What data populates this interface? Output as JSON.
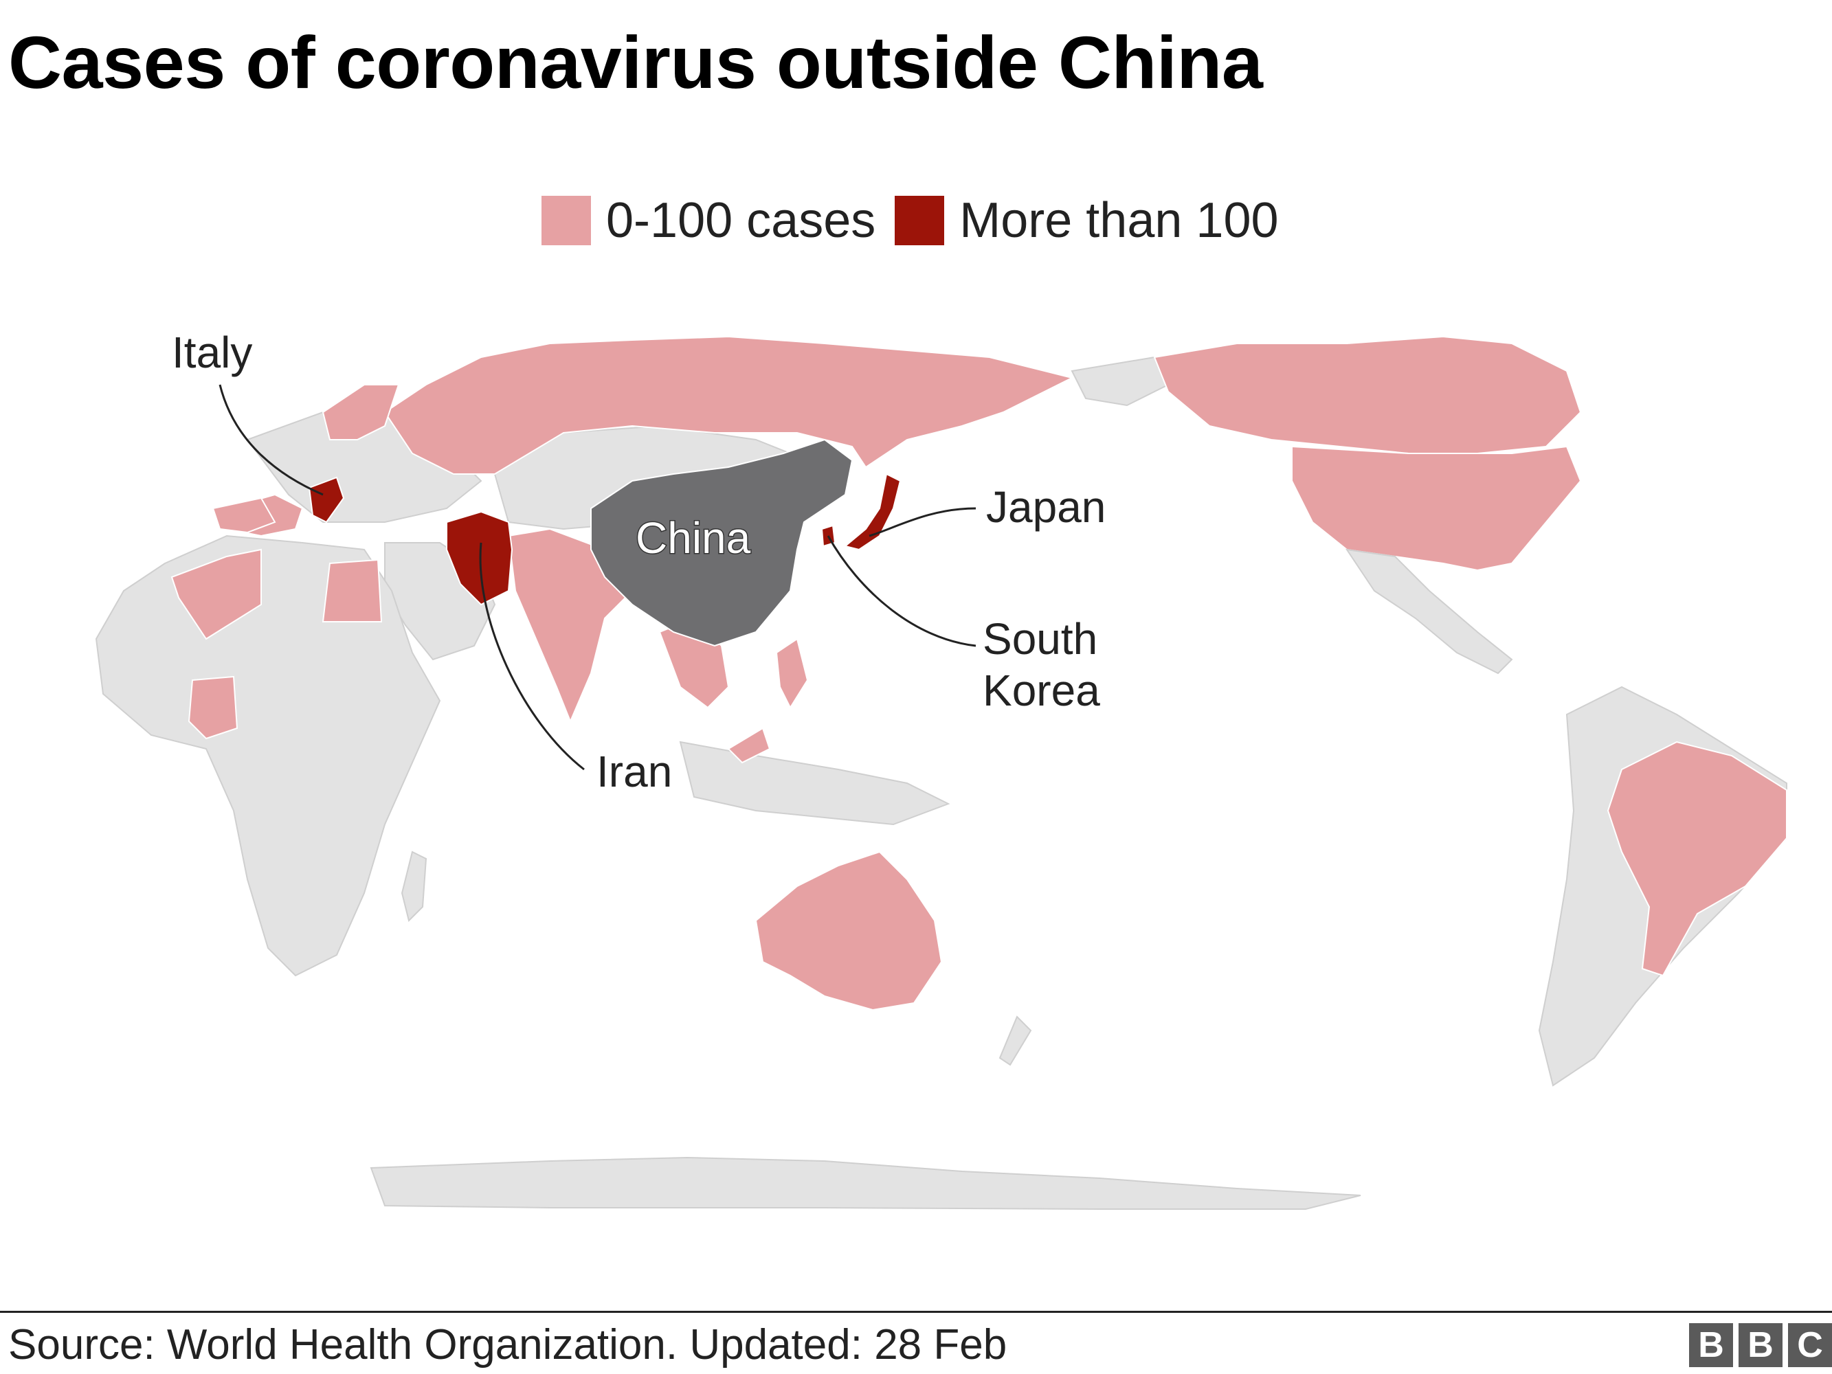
{
  "title": "Cases of coronavirus outside China",
  "legend": [
    {
      "label": "0-100 cases",
      "color": "#e6a1a3"
    },
    {
      "label": "More than 100",
      "color": "#9c1409"
    }
  ],
  "colors": {
    "no_cases": "#e3e3e3",
    "china": "#6e6e70",
    "low": "#e6a1a3",
    "high": "#9c1409"
  },
  "labels": {
    "china": "China",
    "italy": "Italy",
    "iran": "Iran",
    "japan": "Japan",
    "south_korea_line1": "South",
    "south_korea_line2": "Korea"
  },
  "footer": {
    "source": "Source: World Health Organization. Updated: 28 Feb",
    "logo": [
      "B",
      "B",
      "C"
    ]
  }
}
